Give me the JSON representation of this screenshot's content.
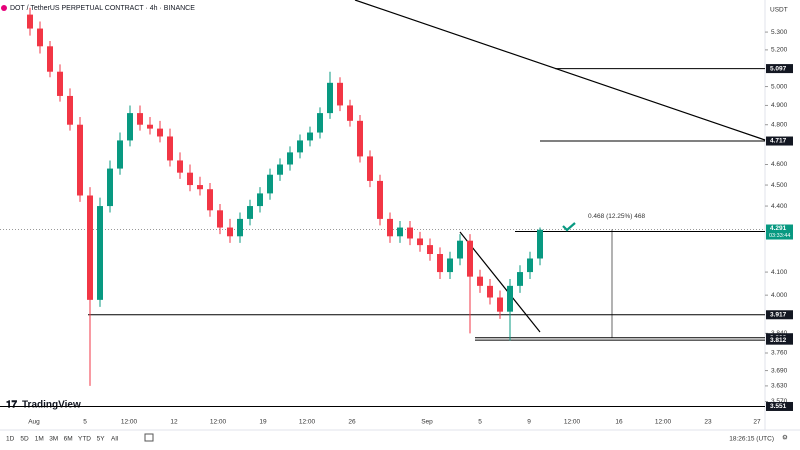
{
  "header": {
    "title": "DOT / TetherUS PERPETUAL CONTRACT · 4h · BINANCE",
    "currency": "USDT"
  },
  "brand": "TradingView",
  "chart_data": {
    "type": "candlestick",
    "log_scale": true,
    "up_color": "#089981",
    "down_color": "#f23645",
    "ylim": [
      3.5,
      5.485
    ],
    "yticks": [
      {
        "value": 5.3,
        "label": "5.300"
      },
      {
        "value": 5.2,
        "label": "5.200"
      },
      {
        "value": 5,
        "label": "5.000"
      },
      {
        "value": 4.9,
        "label": "4.900"
      },
      {
        "value": 4.8,
        "label": "4.800"
      },
      {
        "value": 4.6,
        "label": "4.600"
      },
      {
        "value": 4.5,
        "label": "4.500"
      },
      {
        "value": 4.4,
        "label": "4.400"
      },
      {
        "value": 4.1,
        "label": "4.100"
      },
      {
        "value": 4,
        "label": "4.000"
      },
      {
        "value": 3.84,
        "label": "3.840"
      },
      {
        "value": 3.76,
        "label": "3.760"
      },
      {
        "value": 3.69,
        "label": "3.690"
      },
      {
        "value": 3.63,
        "label": "3.630"
      },
      {
        "value": 3.57,
        "label": "3.570"
      }
    ],
    "x_tick_labels": [
      "Aug",
      "5",
      "12:00",
      "12",
      "12:00",
      "19",
      "12:00",
      "26",
      "Sep",
      "5",
      "9",
      "12:00",
      "16",
      "12:00",
      "23",
      "27"
    ],
    "open": [
      5.4,
      5.32,
      5.22,
      5.08,
      4.95,
      4.8,
      4.45,
      3.98,
      4.4,
      4.58,
      4.72,
      4.86,
      4.8,
      4.78,
      4.74,
      4.62,
      4.56,
      4.5,
      4.48,
      4.38,
      4.3,
      4.26,
      4.34,
      4.4,
      4.46,
      4.55,
      4.6,
      4.66,
      4.72,
      4.76,
      4.86,
      5.02,
      4.9,
      4.82,
      4.64,
      4.52,
      4.34,
      4.26,
      4.3,
      4.25,
      4.22,
      4.18,
      4.1,
      4.16,
      4.24,
      4.08,
      4.04,
      3.99,
      3.93,
      4.04,
      4.1,
      4.16
    ],
    "high": [
      5.44,
      5.36,
      5.25,
      5.12,
      4.99,
      4.84,
      4.49,
      4.44,
      4.62,
      4.76,
      4.9,
      4.9,
      4.84,
      4.82,
      4.78,
      4.66,
      4.6,
      4.54,
      4.51,
      4.41,
      4.34,
      4.37,
      4.43,
      4.49,
      4.58,
      4.63,
      4.69,
      4.75,
      4.79,
      4.89,
      5.08,
      5.05,
      4.93,
      4.85,
      4.67,
      4.55,
      4.37,
      4.33,
      4.33,
      4.28,
      4.25,
      4.21,
      4.19,
      4.27,
      4.27,
      4.11,
      4.07,
      4.02,
      4.07,
      4.13,
      4.19,
      4.3
    ],
    "low": [
      5.28,
      5.18,
      5.05,
      4.92,
      4.77,
      4.42,
      3.63,
      3.95,
      4.37,
      4.55,
      4.69,
      4.77,
      4.75,
      4.71,
      4.59,
      4.53,
      4.47,
      4.45,
      4.35,
      4.27,
      4.23,
      4.23,
      4.31,
      4.37,
      4.43,
      4.52,
      4.57,
      4.63,
      4.69,
      4.73,
      4.83,
      4.87,
      4.79,
      4.61,
      4.49,
      4.31,
      4.23,
      4.23,
      4.22,
      4.19,
      4.15,
      4.07,
      4.07,
      4.13,
      3.84,
      4.01,
      3.96,
      3.9,
      3.81,
      4.01,
      4.07,
      4.13
    ],
    "close": [
      5.32,
      5.22,
      5.08,
      4.95,
      4.8,
      4.45,
      3.98,
      4.4,
      4.58,
      4.72,
      4.86,
      4.8,
      4.78,
      4.74,
      4.62,
      4.56,
      4.5,
      4.48,
      4.38,
      4.3,
      4.26,
      4.34,
      4.4,
      4.46,
      4.55,
      4.6,
      4.66,
      4.72,
      4.76,
      4.86,
      5.02,
      4.9,
      4.82,
      4.64,
      4.52,
      4.34,
      4.26,
      4.3,
      4.25,
      4.22,
      4.18,
      4.1,
      4.16,
      4.24,
      4.08,
      4.04,
      3.99,
      3.93,
      4.04,
      4.1,
      4.16,
      4.29
    ],
    "levels": [
      5.097,
      4.717,
      4.282,
      3.917,
      3.822,
      3.812,
      3.551
    ],
    "last_price": 4.291,
    "countdown": "03:33:44",
    "measure_label": "0.468 (12.25%) 468"
  },
  "toolbar": {
    "ranges": [
      "1D",
      "5D",
      "1M",
      "3M",
      "6M",
      "YTD",
      "5Y",
      "All"
    ],
    "clock": "18:26:15 (UTC)"
  }
}
